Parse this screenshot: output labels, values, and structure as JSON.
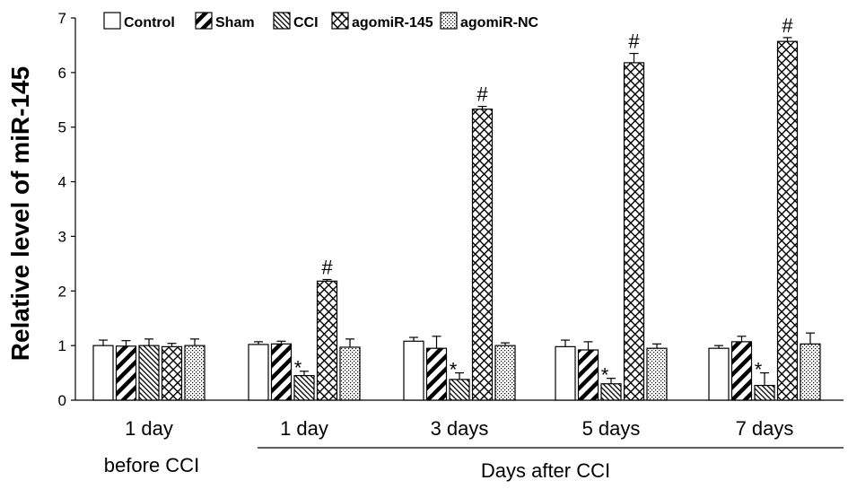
{
  "chart_data": {
    "type": "bar",
    "ylabel": "Relative level of miR-145",
    "xlabel": "Days after CCI",
    "ylim": [
      0,
      7
    ],
    "yticks": [
      "0",
      "1",
      "2",
      "3",
      "4",
      "5",
      "6",
      "7"
    ],
    "categories": [
      {
        "line1": "1 day",
        "line2": "before CCI"
      },
      {
        "line1": "1 day",
        "line2": ""
      },
      {
        "line1": "3 days",
        "line2": ""
      },
      {
        "line1": "5 days",
        "line2": ""
      },
      {
        "line1": "7 days",
        "line2": ""
      }
    ],
    "series": [
      {
        "name": "Control",
        "pattern": "empty",
        "values": [
          1.0,
          1.02,
          1.08,
          0.98,
          0.95
        ],
        "errors": [
          0.1,
          0.05,
          0.07,
          0.12,
          0.05
        ]
      },
      {
        "name": "Sham",
        "pattern": "wide-diagonal",
        "values": [
          0.99,
          1.03,
          0.95,
          0.92,
          1.07
        ],
        "errors": [
          0.1,
          0.05,
          0.22,
          0.15,
          0.1
        ]
      },
      {
        "name": "CCI",
        "pattern": "narrow-diagonal",
        "values": [
          1.0,
          0.45,
          0.38,
          0.3,
          0.27
        ],
        "errors": [
          0.12,
          0.08,
          0.12,
          0.1,
          0.23
        ]
      },
      {
        "name": "agomiR-145",
        "pattern": "crosshatch",
        "values": [
          0.98,
          2.18,
          5.33,
          6.18,
          6.57
        ],
        "errors": [
          0.06,
          0.03,
          0.05,
          0.17,
          0.07
        ]
      },
      {
        "name": "agomiR-NC",
        "pattern": "dots",
        "values": [
          1.0,
          0.97,
          1.0,
          0.95,
          1.03
        ],
        "errors": [
          0.12,
          0.15,
          0.05,
          0.08,
          0.2
        ]
      }
    ],
    "annotations": [
      {
        "symbol": "*",
        "series": "CCI",
        "categories": [
          1,
          2,
          3,
          4
        ]
      },
      {
        "symbol": "#",
        "series": "agomiR-145",
        "categories": [
          1,
          2,
          3,
          4
        ]
      }
    ],
    "legend_position": "top",
    "grid": false
  }
}
